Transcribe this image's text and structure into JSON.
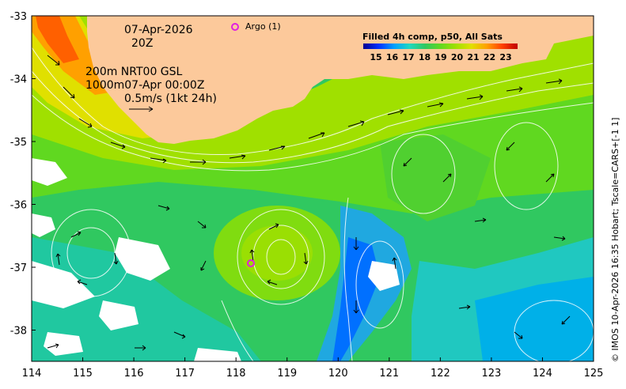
{
  "map": {
    "date": "07-Apr-2026",
    "time": "20Z",
    "depth_line_1": "200m  NRT00 GSL",
    "depth_line_2": "1000m07-Apr 00:00Z",
    "velocity_scale": "0.5m/s (1kt 24h)",
    "argo_legend": "Argo (1)",
    "colorbar": {
      "title": "Filled 4h comp, p50, All Sats",
      "ticks": [
        "15",
        "16",
        "17",
        "18",
        "19",
        "20",
        "21",
        "22",
        "23"
      ],
      "colors": [
        "#00008f",
        "#0030ff",
        "#00a0ff",
        "#20d8c0",
        "#30c860",
        "#60d820",
        "#a0e000",
        "#e0e000",
        "#ffa000",
        "#ff4000",
        "#c00000"
      ]
    },
    "credit": "© IMOS 10-Apr-2026 16:35 Hobart; Tscale=CARS+[-1 1]",
    "x_ticks": [
      "114",
      "115",
      "116",
      "117",
      "118",
      "119",
      "120",
      "121",
      "122",
      "123",
      "124",
      "125"
    ],
    "y_ticks": [
      "-33",
      "-34",
      "-35",
      "-36",
      "-37",
      "-38"
    ],
    "land_color": "#fcc99b",
    "argo_color": "#e020e0"
  }
}
